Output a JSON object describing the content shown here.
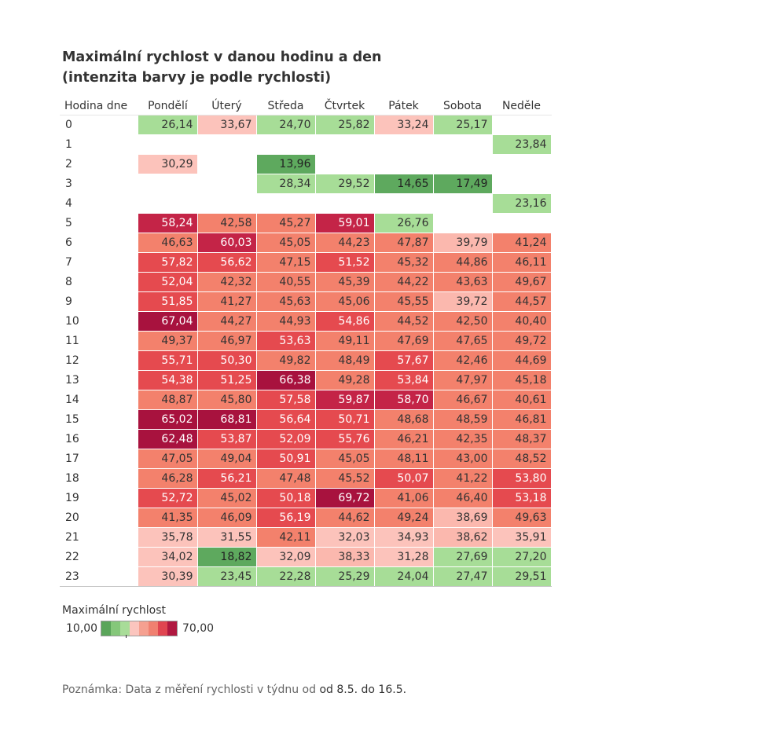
{
  "chart_data": {
    "type": "heatmap",
    "title_line1": "Maximální rychlost v danou hodinu a den",
    "title_line2": "(intenzita barvy je podle rychlosti)",
    "row_header": "Hodina dne",
    "columns": [
      "Pondělí",
      "Úterý",
      "Středa",
      "Čtvrtek",
      "Pátek",
      "Sobota",
      "Neděle"
    ],
    "rows": [
      {
        "hour": "0",
        "values": [
          "26,14",
          "33,67",
          "24,70",
          "25,82",
          "33,24",
          "25,17",
          ""
        ]
      },
      {
        "hour": "1",
        "values": [
          "",
          "",
          "",
          "",
          "",
          "",
          "23,84"
        ]
      },
      {
        "hour": "2",
        "values": [
          "30,29",
          "",
          "13,96",
          "",
          "",
          "",
          ""
        ]
      },
      {
        "hour": "3",
        "values": [
          "",
          "",
          "28,34",
          "29,52",
          "14,65",
          "17,49",
          ""
        ]
      },
      {
        "hour": "4",
        "values": [
          "",
          "",
          "",
          "",
          "",
          "",
          "23,16"
        ]
      },
      {
        "hour": "5",
        "values": [
          "58,24",
          "42,58",
          "45,27",
          "59,01",
          "26,76",
          "",
          ""
        ]
      },
      {
        "hour": "6",
        "values": [
          "46,63",
          "60,03",
          "45,05",
          "44,23",
          "47,87",
          "39,79",
          "41,24"
        ]
      },
      {
        "hour": "7",
        "values": [
          "57,82",
          "56,62",
          "47,15",
          "51,52",
          "45,32",
          "44,86",
          "46,11"
        ]
      },
      {
        "hour": "8",
        "values": [
          "52,04",
          "42,32",
          "40,55",
          "45,39",
          "44,22",
          "43,63",
          "49,67"
        ]
      },
      {
        "hour": "9",
        "values": [
          "51,85",
          "41,27",
          "45,63",
          "45,06",
          "45,55",
          "39,72",
          "44,57"
        ]
      },
      {
        "hour": "10",
        "values": [
          "67,04",
          "44,27",
          "44,93",
          "54,86",
          "44,52",
          "42,50",
          "40,40"
        ]
      },
      {
        "hour": "11",
        "values": [
          "49,37",
          "46,97",
          "53,63",
          "49,11",
          "47,69",
          "47,65",
          "49,72"
        ]
      },
      {
        "hour": "12",
        "values": [
          "55,71",
          "50,30",
          "49,82",
          "48,49",
          "57,67",
          "42,46",
          "44,69"
        ]
      },
      {
        "hour": "13",
        "values": [
          "54,38",
          "51,25",
          "66,38",
          "49,28",
          "53,84",
          "47,97",
          "45,18"
        ]
      },
      {
        "hour": "14",
        "values": [
          "48,87",
          "45,80",
          "57,58",
          "59,87",
          "58,70",
          "46,67",
          "40,61"
        ]
      },
      {
        "hour": "15",
        "values": [
          "65,02",
          "68,81",
          "56,64",
          "50,71",
          "48,68",
          "48,59",
          "46,81"
        ]
      },
      {
        "hour": "16",
        "values": [
          "62,48",
          "53,87",
          "52,09",
          "55,76",
          "46,21",
          "42,35",
          "48,37"
        ]
      },
      {
        "hour": "17",
        "values": [
          "47,05",
          "49,04",
          "50,91",
          "45,05",
          "48,11",
          "43,00",
          "48,52"
        ]
      },
      {
        "hour": "18",
        "values": [
          "46,28",
          "56,21",
          "47,48",
          "45,52",
          "50,07",
          "41,22",
          "53,80"
        ]
      },
      {
        "hour": "19",
        "values": [
          "52,72",
          "45,02",
          "50,18",
          "69,72",
          "41,06",
          "46,40",
          "53,18"
        ]
      },
      {
        "hour": "20",
        "values": [
          "41,35",
          "46,09",
          "56,19",
          "44,62",
          "49,24",
          "38,69",
          "49,63"
        ]
      },
      {
        "hour": "21",
        "values": [
          "35,78",
          "31,55",
          "42,11",
          "32,03",
          "34,93",
          "38,62",
          "35,91"
        ]
      },
      {
        "hour": "22",
        "values": [
          "34,02",
          "18,82",
          "32,09",
          "38,33",
          "31,28",
          "27,69",
          "27,20"
        ]
      },
      {
        "hour": "23",
        "values": [
          "30,39",
          "23,45",
          "22,28",
          "25,29",
          "24,04",
          "27,47",
          "29,51"
        ]
      }
    ],
    "legend": {
      "title": "Maximální rychlost",
      "min_label": "10,00",
      "max_label": "70,00",
      "range": [
        10,
        70
      ],
      "colors": [
        "#5aa55a",
        "#85c77a",
        "#a8dc98",
        "#fbc5be",
        "#f5a090",
        "#f08070",
        "#e04550",
        "#b01840"
      ]
    }
  },
  "note": {
    "prefix": "Poznámka: Data z měření rychlosti v týdnu od ",
    "highlight": "od 8.5. do 16.5."
  }
}
